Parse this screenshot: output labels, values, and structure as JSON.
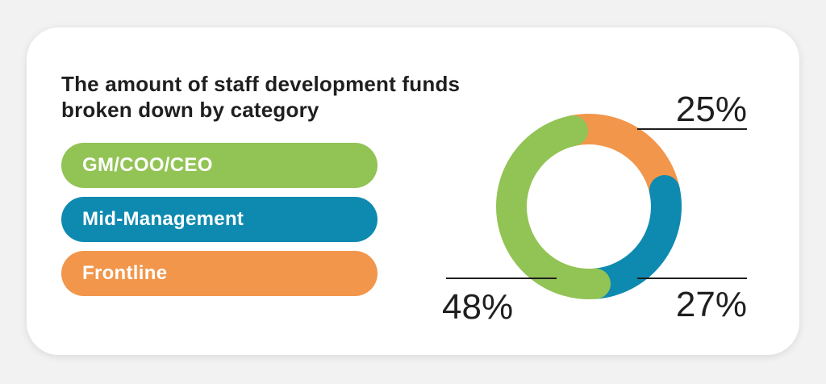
{
  "chart_data": {
    "type": "pie",
    "title": "The amount of staff development funds broken down by category",
    "categories": [
      "GM/COO/CEO",
      "Mid-Management",
      "Frontline"
    ],
    "values": [
      48,
      27,
      25
    ],
    "labels": [
      "48%",
      "27%",
      "25%"
    ],
    "colors": [
      "#92c355",
      "#0e8ab0",
      "#f1964b"
    ],
    "donut": true,
    "legend_position": "left"
  }
}
